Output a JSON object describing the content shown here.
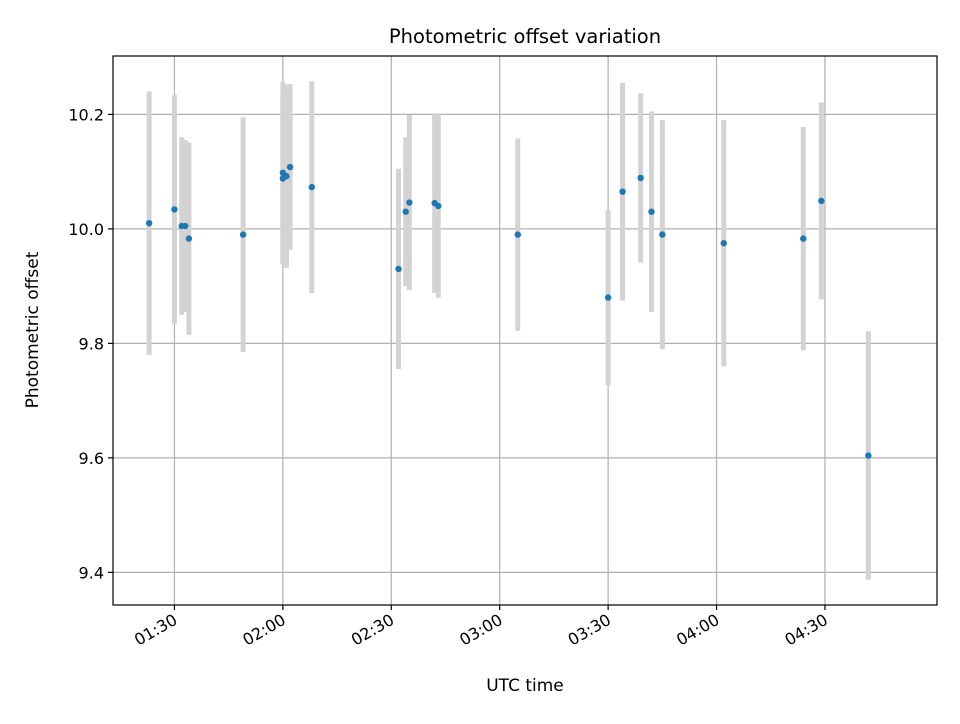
{
  "chart_data": {
    "type": "scatter",
    "title": "Photometric offset variation",
    "xlabel": "UTC time",
    "ylabel": "Photometric offset",
    "xaxis_type": "time",
    "xlim": [
      "01:13",
      "05:01"
    ],
    "ylim": [
      9.343,
      10.302
    ],
    "xticks": [
      "01:30",
      "02:00",
      "02:30",
      "03:00",
      "03:30",
      "04:00",
      "04:30"
    ],
    "yticks": [
      9.4,
      9.6,
      9.8,
      10.0,
      10.2
    ],
    "grid": true,
    "colors": {
      "marker": "#1f77b4",
      "errorbar": "#d3d3d3",
      "grid": "#b0b0b0"
    },
    "points": [
      {
        "x": "01:23",
        "y": 10.01,
        "err": 0.23
      },
      {
        "x": "01:30",
        "y": 10.034,
        "err": 0.2
      },
      {
        "x": "01:32",
        "y": 10.005,
        "err": 0.155
      },
      {
        "x": "01:33",
        "y": 10.005,
        "err": 0.15
      },
      {
        "x": "01:34",
        "y": 9.983,
        "err": 0.168
      },
      {
        "x": "01:49",
        "y": 9.99,
        "err": 0.205
      },
      {
        "x": "02:00",
        "y": 10.098,
        "err": 0.158
      },
      {
        "x": "02:00",
        "y": 10.088,
        "err": 0.15
      },
      {
        "x": "02:01",
        "y": 10.092,
        "err": 0.16
      },
      {
        "x": "02:02",
        "y": 10.108,
        "err": 0.145
      },
      {
        "x": "02:08",
        "y": 10.073,
        "err": 0.185
      },
      {
        "x": "02:32",
        "y": 9.93,
        "err": 0.175
      },
      {
        "x": "02:34",
        "y": 10.03,
        "err": 0.13
      },
      {
        "x": "02:35",
        "y": 10.046,
        "err": 0.153
      },
      {
        "x": "02:42",
        "y": 10.045,
        "err": 0.157
      },
      {
        "x": "02:43",
        "y": 10.04,
        "err": 0.16
      },
      {
        "x": "03:05",
        "y": 9.99,
        "err": 0.168
      },
      {
        "x": "03:30",
        "y": 9.88,
        "err": 0.153
      },
      {
        "x": "03:34",
        "y": 10.065,
        "err": 0.19
      },
      {
        "x": "03:39",
        "y": 10.089,
        "err": 0.148
      },
      {
        "x": "03:42",
        "y": 10.03,
        "err": 0.175
      },
      {
        "x": "03:45",
        "y": 9.99,
        "err": 0.2
      },
      {
        "x": "04:02",
        "y": 9.975,
        "err": 0.215
      },
      {
        "x": "04:24",
        "y": 9.983,
        "err": 0.195
      },
      {
        "x": "04:29",
        "y": 10.049,
        "err": 0.172
      },
      {
        "x": "04:42",
        "y": 9.604,
        "err": 0.217
      }
    ]
  }
}
